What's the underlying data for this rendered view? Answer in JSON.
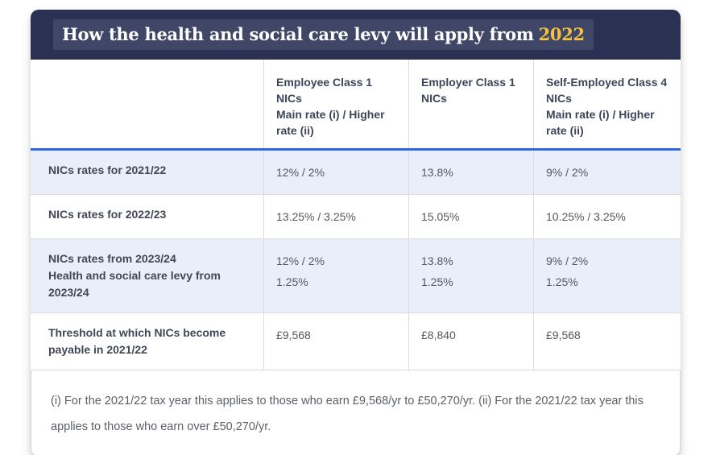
{
  "header": {
    "title_prefix": "How the health and social care levy will apply from",
    "title_highlight": "2022"
  },
  "chart_data": {
    "type": "table",
    "title": "How the health and social care levy will apply from 2022",
    "columns": [
      {
        "label": ""
      },
      {
        "label": "Employee Class 1 NICs\nMain rate (i) / Higher rate (ii)"
      },
      {
        "label": "Employer Class 1 NICs"
      },
      {
        "label": "Self-Employed Class 4 NICs\nMain rate (i) / Higher rate (ii)"
      }
    ],
    "rows": [
      {
        "label": "NICs rates for 2021/22",
        "values": [
          "12% / 2%",
          "13.8%",
          "9% / 2%"
        ]
      },
      {
        "label": "NICs rates for 2022/23",
        "values": [
          "13.25% / 3.25%",
          "15.05%",
          "10.25% / 3.25%"
        ]
      },
      {
        "label": "NICs rates from 2023/24\nHealth and social care levy from 2023/24",
        "values": [
          "12% / 2%\n1.25%",
          "13.8%\n1.25%",
          "9% / 2%\n1.25%"
        ]
      },
      {
        "label": "Threshold at which NICs become payable in 2021/22",
        "values": [
          "£9,568",
          "£8,840",
          "£9,568"
        ]
      }
    ],
    "footnote": "(i) For the 2021/22 tax year this applies to those who earn £9,568/yr to £50,270/yr. (ii) For the 2021/22 tax year this applies to those who earn over £50,270/yr.",
    "layout": {
      "grid": "off",
      "legend": "none"
    }
  },
  "colors": {
    "header_bg": "#2b3153",
    "header_overlay": "#3f4666",
    "title_highlight": "#f3c23e",
    "divider_blue": "#3166e3",
    "row_stripe": "#eaeefa",
    "cell_border": "#dcdcdc"
  }
}
